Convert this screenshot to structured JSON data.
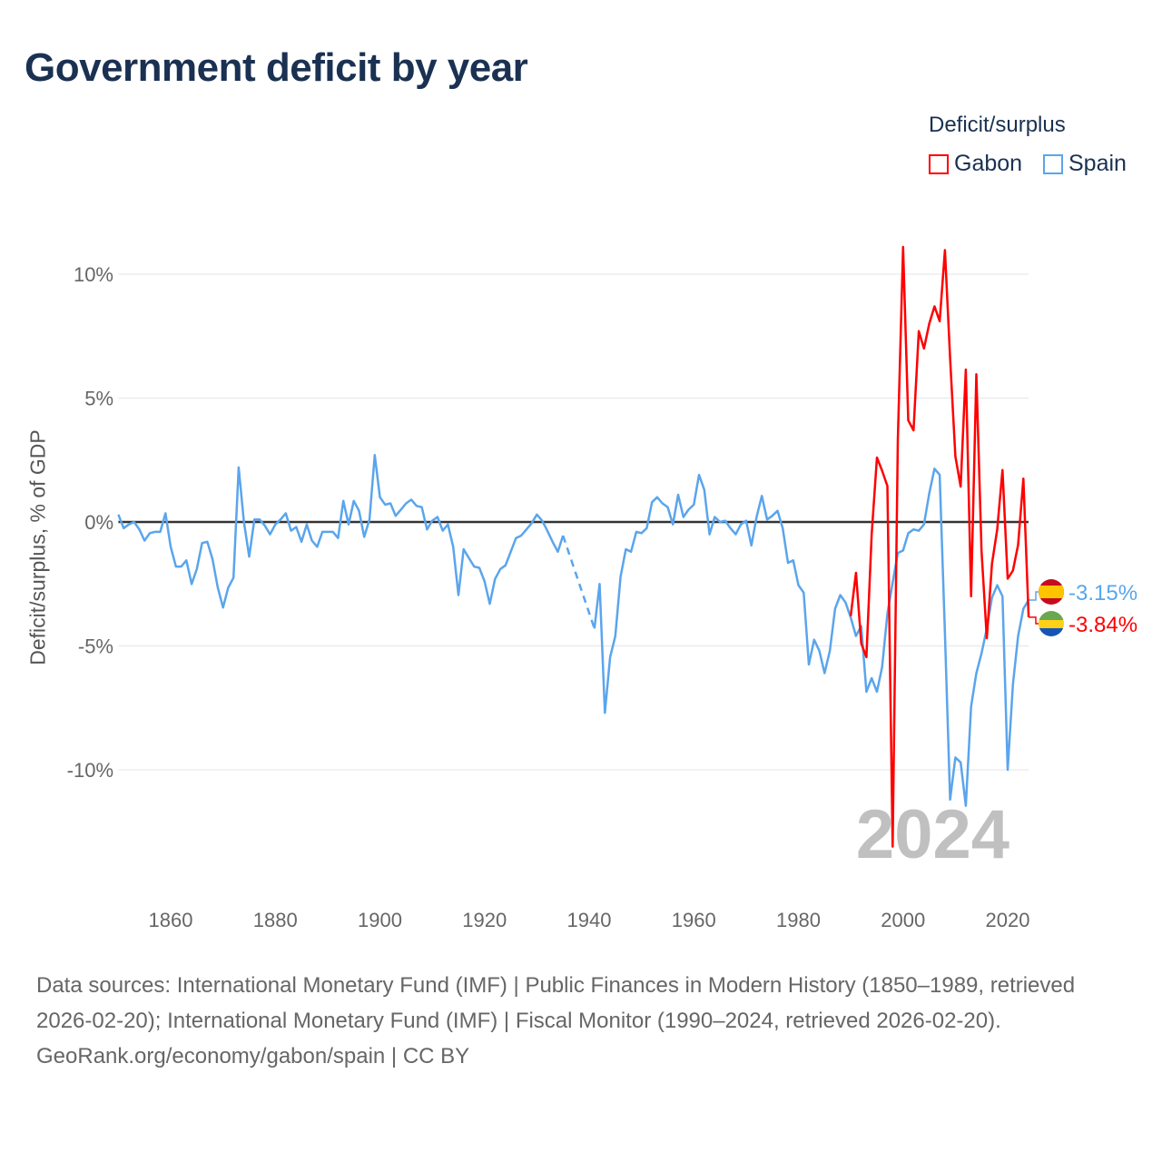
{
  "title": "Government deficit by year",
  "legend": {
    "title": "Deficit/surplus",
    "items": [
      {
        "label": "Gabon",
        "color": "#ff0000"
      },
      {
        "label": "Spain",
        "color": "#5aa5ec"
      }
    ]
  },
  "footer": {
    "sources": "Data sources: International Monetary Fund (IMF) | Public Finances in Modern History (1850–1989, retrieved 2026-02-20); International Monetary Fund (IMF) | Fiscal Monitor (1990–2024, retrieved 2026-02-20).",
    "credit": "GeoRank.org/economy/gabon/spain | CC BY"
  },
  "chart_data": {
    "type": "line",
    "title": "Government deficit by year",
    "xlabel": "",
    "ylabel": "Deficit/surplus, % of GDP",
    "xlim": [
      1850,
      2024
    ],
    "ylim": [
      -13.3,
      11.2
    ],
    "x_ticks": [
      1860,
      1880,
      1900,
      1920,
      1940,
      1960,
      1980,
      2000,
      2020
    ],
    "y_ticks": [
      {
        "value": 10,
        "label": "10%"
      },
      {
        "value": 5,
        "label": "5%"
      },
      {
        "value": 0,
        "label": "0%"
      },
      {
        "value": -5,
        "label": "-5%"
      },
      {
        "value": -10,
        "label": "-10%"
      }
    ],
    "year_label": "2024",
    "series": [
      {
        "name": "Spain",
        "color": "#5aa5ec",
        "start_year": 1850,
        "end_label": "-3.15%",
        "values": [
          0.3,
          -0.25,
          -0.1,
          0,
          -0.3,
          -0.75,
          -0.45,
          -0.4,
          -0.4,
          0.35,
          -1.0,
          -1.8,
          -1.8,
          -1.55,
          -2.5,
          -1.9,
          -0.85,
          -0.8,
          -1.5,
          -2.65,
          -3.45,
          -2.65,
          -2.25,
          2.2,
          0,
          -1.4,
          0.1,
          0.1,
          -0.15,
          -0.5,
          -0.1,
          0.1,
          0.35,
          -0.35,
          -0.2,
          -0.8,
          -0.1,
          -0.75,
          -1.0,
          -0.4,
          -0.4,
          -0.4,
          -0.65,
          0.85,
          -0.1,
          0.85,
          0.45,
          -0.6,
          0.1,
          2.7,
          1.0,
          0.7,
          0.75,
          0.25,
          0.5,
          0.75,
          0.9,
          0.65,
          0.6,
          -0.3,
          0.05,
          0.2,
          -0.35,
          -0.1,
          -1.0,
          -2.95,
          -1.1,
          -1.45,
          -1.8,
          -1.85,
          -2.4,
          -3.3,
          -2.3,
          -1.9,
          -1.75,
          -1.2,
          -0.65,
          -0.55,
          -0.3,
          -0.05,
          0.3,
          0.05,
          -0.35,
          -0.8,
          -1.2,
          -0.55,
          null,
          null,
          null,
          null,
          null,
          -4.3,
          -2.5,
          -7.7,
          -5.45,
          -4.6,
          -2.2,
          -1.1,
          -1.2,
          -0.4,
          -0.45,
          -0.25,
          0.8,
          1.0,
          0.75,
          0.6,
          -0.1,
          1.1,
          0.2,
          0.5,
          0.7,
          1.9,
          1.3,
          -0.5,
          0.2,
          0,
          0.05,
          -0.25,
          -0.5,
          -0.1,
          0.05,
          -0.95,
          0.2,
          1.05,
          0.1,
          0.25,
          0.45,
          -0.25,
          -1.65,
          -1.55,
          -2.55,
          -2.85,
          -5.75,
          -4.75,
          -5.2,
          -6.1,
          -5.2,
          -3.5,
          -2.95,
          -3.25,
          -3.85,
          -4.6,
          -4.2,
          -6.85,
          -6.3,
          -6.85,
          -5.85,
          -3.7,
          -2.45,
          -1.25,
          -1.15,
          -0.45,
          -0.3,
          -0.35,
          -0.1,
          1.15,
          2.15,
          1.9,
          -4.5,
          -11.2,
          -9.5,
          -9.7,
          -11.45,
          -7.45,
          -6.1,
          -5.3,
          -4.3,
          -3.05,
          -2.55,
          -3.0,
          -10.0,
          -6.55,
          -4.6,
          -3.5,
          -3.15
        ]
      },
      {
        "name": "Gabon",
        "color": "#ff0000",
        "start_year": 1990,
        "end_label": "-3.84%",
        "values": [
          -3.8,
          -2.05,
          -4.9,
          -5.45,
          -0.5,
          2.6,
          2.07,
          1.45,
          -13.1,
          3.3,
          11.1,
          4.1,
          3.7,
          7.7,
          7.0,
          8.0,
          8.7,
          8.1,
          10.97,
          6.6,
          2.65,
          1.43,
          6.15,
          -3.0,
          5.96,
          -1.16,
          -4.69,
          -1.69,
          -0.29,
          2.1,
          -2.29,
          -1.96,
          -0.92,
          1.75,
          -3.84
        ]
      }
    ]
  }
}
